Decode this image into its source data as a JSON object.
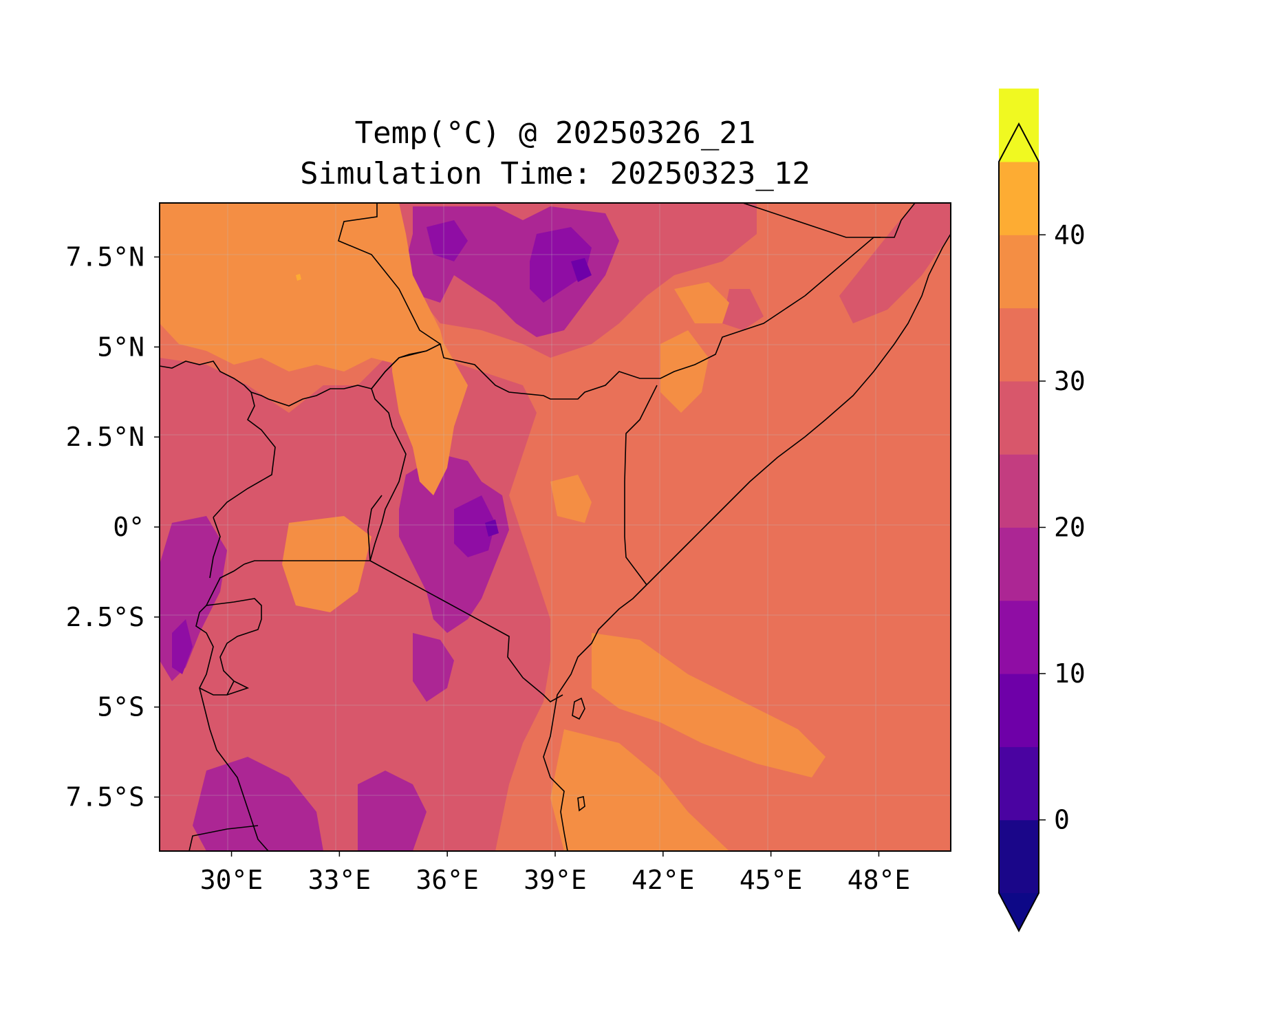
{
  "title": {
    "line1": "Temp(°C) @ 20250326_21",
    "line2": "Simulation Time: 20250323_12"
  },
  "map": {
    "x_ticks": [
      {
        "lon": 30,
        "label": "30°E"
      },
      {
        "lon": 33,
        "label": "33°E"
      },
      {
        "lon": 36,
        "label": "36°E"
      },
      {
        "lon": 39,
        "label": "39°E"
      },
      {
        "lon": 42,
        "label": "42°E"
      },
      {
        "lon": 45,
        "label": "45°E"
      },
      {
        "lon": 48,
        "label": "48°E"
      }
    ],
    "y_ticks": [
      {
        "lat": 7.5,
        "label": "7.5°N"
      },
      {
        "lat": 5,
        "label": "5°N"
      },
      {
        "lat": 2.5,
        "label": "2.5°N"
      },
      {
        "lat": 0,
        "label": "0°"
      },
      {
        "lat": -2.5,
        "label": "2.5°S"
      },
      {
        "lat": -5,
        "label": "5°S"
      },
      {
        "lat": -7.5,
        "label": "7.5°S"
      }
    ],
    "lon_range": [
      28,
      50
    ],
    "lat_range": [
      -9,
      9
    ]
  },
  "colorbar": {
    "levels": [
      -5,
      0,
      5,
      10,
      15,
      20,
      25,
      30,
      35,
      40,
      45
    ],
    "extend": "both",
    "colors": [
      "#1a0689",
      "#4a03a1",
      "#6e00a8",
      "#8f0da4",
      "#ac2694",
      "#c33d80",
      "#d8576b",
      "#e97158",
      "#f48e44",
      "#fdac33",
      "#f0f921"
    ],
    "under_color": "#0d0887",
    "over_color": "#f0f921",
    "ticks": [
      {
        "value": 0,
        "label": "0"
      },
      {
        "value": 10,
        "label": "10"
      },
      {
        "value": 20,
        "label": "20"
      },
      {
        "value": 30,
        "label": "30"
      },
      {
        "value": 40,
        "label": "40"
      }
    ]
  }
}
